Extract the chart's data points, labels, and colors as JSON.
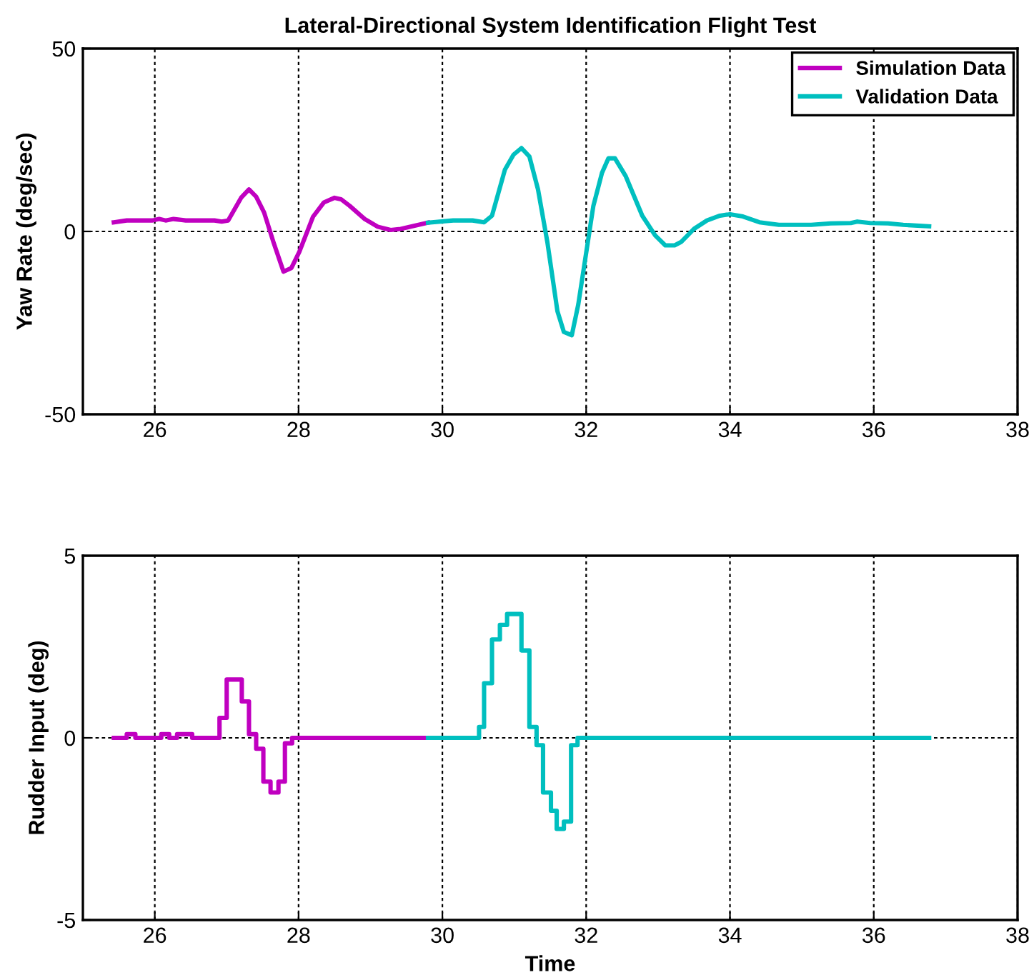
{
  "chart_data": [
    {
      "type": "line",
      "title": "Lateral-Directional System Identification Flight Test",
      "ylabel": "Yaw Rate (deg/sec)",
      "xlim": [
        25,
        38
      ],
      "xticks": [
        26,
        28,
        30,
        32,
        34,
        36,
        38
      ],
      "ylim": [
        -50,
        50
      ],
      "yticks": [
        -50,
        0,
        50
      ],
      "grid": true,
      "legend": "top right",
      "series": [
        {
          "name": "Simulation Data",
          "color": "#c000c0",
          "x": [
            25.43,
            25.61,
            25.97,
            26.06,
            26.15,
            26.26,
            26.43,
            26.83,
            26.93,
            27.02,
            27.2,
            27.31,
            27.41,
            27.52,
            27.65,
            27.79,
            27.9,
            28.01,
            28.2,
            28.35,
            28.5,
            28.59,
            28.71,
            28.92,
            29.1,
            29.28,
            29.42,
            29.56,
            29.8
          ],
          "values": [
            2.5,
            3,
            3,
            3.4,
            3,
            3.4,
            3,
            3,
            2.7,
            3,
            9.2,
            11.5,
            9.5,
            5.2,
            -2.9,
            -11,
            -10,
            -5.6,
            4,
            7.9,
            9.2,
            8.8,
            7,
            3.4,
            1.3,
            0.4,
            0.7,
            1.3,
            2.4
          ]
        },
        {
          "name": "Validation Data",
          "color": "#00bfbf",
          "x": [
            29.8,
            30.15,
            30.42,
            30.58,
            30.69,
            30.87,
            30.99,
            31.1,
            31.21,
            31.33,
            31.46,
            31.6,
            31.69,
            31.8,
            31.89,
            32.03,
            32.1,
            32.22,
            32.31,
            32.4,
            32.55,
            32.78,
            32.96,
            33.1,
            33.23,
            33.32,
            33.5,
            33.68,
            33.86,
            34.0,
            34.18,
            34.41,
            34.68,
            35.13,
            35.4,
            35.68,
            35.77,
            35.95,
            36.2,
            36.41,
            36.77
          ],
          "values": [
            2.4,
            3,
            3,
            2.5,
            4.3,
            16.9,
            21,
            22.8,
            20.5,
            11.5,
            -2.9,
            -21.8,
            -27.5,
            -28.4,
            -20,
            -2,
            7,
            16,
            20,
            20,
            15.1,
            4.3,
            -1.1,
            -3.8,
            -3.8,
            -2.9,
            0.7,
            3,
            4.3,
            4.7,
            4.1,
            2.5,
            1.8,
            1.8,
            2.2,
            2.3,
            2.7,
            2.3,
            2.2,
            1.8,
            1.4
          ]
        }
      ]
    },
    {
      "type": "step",
      "xlabel": "Time",
      "ylabel": "Rudder Input (deg)",
      "xlim": [
        25,
        38
      ],
      "xticks": [
        26,
        28,
        30,
        32,
        34,
        36,
        38
      ],
      "ylim": [
        -5,
        5
      ],
      "yticks": [
        -5,
        0,
        5
      ],
      "grid": true,
      "series": [
        {
          "color": "#c000c0",
          "x": [
            25.43,
            25.61,
            25.73,
            26.09,
            26.2,
            26.31,
            26.52,
            26.9,
            27.0,
            27.21,
            27.31,
            27.41,
            27.51,
            27.61,
            27.72,
            27.81,
            27.91,
            29.8
          ],
          "values": [
            0,
            0.1,
            0,
            0.1,
            0,
            0.1,
            0,
            0.55,
            1.6,
            1.0,
            0.1,
            -0.3,
            -1.2,
            -1.5,
            -1.2,
            -0.15,
            0,
            0
          ]
        },
        {
          "color": "#00bfbf",
          "x": [
            29.8,
            30.51,
            30.58,
            30.69,
            30.8,
            30.9,
            31.1,
            31.21,
            31.31,
            31.4,
            31.51,
            31.59,
            31.69,
            31.79,
            31.88,
            36.77
          ],
          "values": [
            0,
            0.3,
            1.5,
            2.7,
            3.1,
            3.4,
            2.4,
            0.3,
            -0.2,
            -1.5,
            -2.0,
            -2.5,
            -2.3,
            -0.2,
            0,
            0
          ]
        }
      ]
    }
  ]
}
